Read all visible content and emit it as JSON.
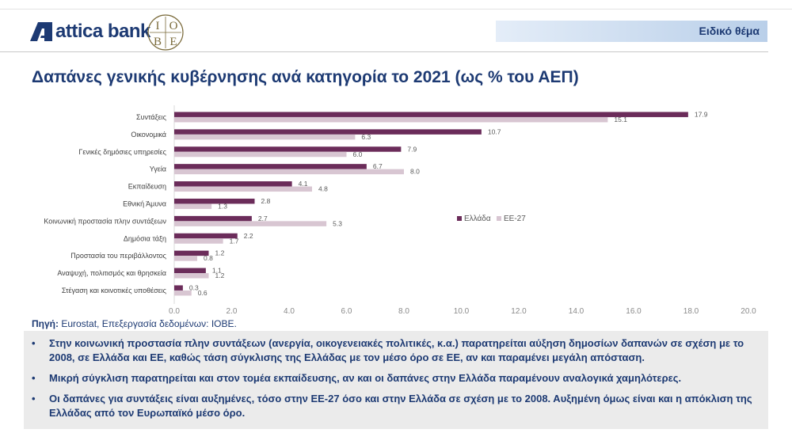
{
  "header": {
    "bank_name": "attica bank",
    "iobe_letters": [
      "Ι",
      "Ο",
      "Β",
      "Ε"
    ],
    "topic": "Ειδικό θέμα"
  },
  "title": "Δαπάνες γενικής κυβέρνησης ανά κατηγορία το 2021 (ως % του ΑΕΠ)",
  "colors": {
    "greece": "#6b2c5a",
    "eu27": "#d8c6d2",
    "brand": "#1d3a73"
  },
  "chart_data": {
    "type": "bar",
    "orientation": "horizontal",
    "categories": [
      "Συντάξεις",
      "Οικονομικά",
      "Γενικές δημόσιες υπηρεσίες",
      "Υγεία",
      "Εκπαίδευση",
      "Εθνική Άμυνα",
      "Κοινωνική προστασία πλην συντάξεων",
      "Δημόσια τάξη",
      "Προστασία του περιβάλλοντος",
      "Αναψυχή, πολιτισμός και θρησκεία",
      "Στέγαση και κοινοτικές υποθέσεις"
    ],
    "series": [
      {
        "name": "Ελλάδα",
        "values": [
          17.9,
          10.7,
          7.9,
          6.7,
          4.1,
          2.8,
          2.7,
          2.2,
          1.2,
          1.1,
          0.3
        ]
      },
      {
        "name": "ΕΕ-27",
        "values": [
          15.1,
          6.3,
          6.0,
          8.0,
          4.8,
          1.3,
          5.3,
          1.7,
          0.8,
          1.2,
          0.6
        ]
      }
    ],
    "xlim": [
      0,
      20
    ],
    "xticks": [
      "0.0",
      "2.0",
      "4.0",
      "6.0",
      "8.0",
      "10.0",
      "12.0",
      "14.0",
      "16.0",
      "18.0",
      "20.0"
    ],
    "legend_position": "right",
    "grid": false
  },
  "source": {
    "label": "Πηγή:",
    "text": " Eurostat, Επεξεργασία δεδομένων: ΙΟΒΕ."
  },
  "notes": [
    "Στην κοινωνική προστασία πλην συντάξεων (ανεργία, οικογενειακές πολιτικές, κ.α.) παρατηρείται αύξηση δημοσίων δαπανών σε σχέση με το 2008, σε Ελλάδα και ΕΕ, καθώς τάση σύγκλισης της Ελλάδας με τον μέσο όρο σε ΕΕ, αν και παραμένει μεγάλη απόσταση.",
    "Μικρή σύγκλιση παρατηρείται και στον τομέα εκπαίδευσης, αν και οι δαπάνες στην Ελλάδα παραμένουν αναλογικά χαμηλότερες.",
    "Οι δαπάνες για συντάξεις είναι αυξημένες, τόσο στην ΕΕ-27 όσο και στην Ελλάδα σε σχέση με το 2008. Αυξημένη όμως είναι και η απόκλιση της Ελλάδας από τον Ευρωπαϊκό μέσο όρο."
  ]
}
